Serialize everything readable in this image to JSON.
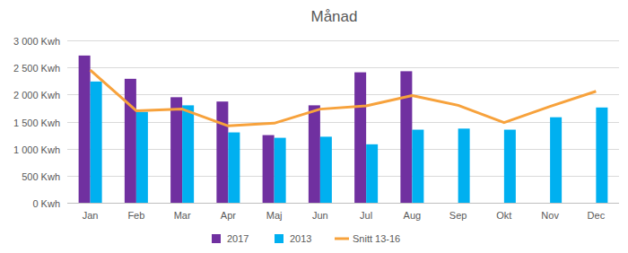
{
  "chart_data": {
    "type": "bar",
    "title": "Månad",
    "categories": [
      "Jan",
      "Feb",
      "Mar",
      "Apr",
      "Maj",
      "Jun",
      "Jul",
      "Aug",
      "Sep",
      "Okt",
      "Nov",
      "Dec"
    ],
    "series": [
      {
        "name": "2017",
        "type": "bar",
        "color": "#7030a0",
        "values": [
          2720,
          2290,
          1950,
          1870,
          1250,
          1800,
          2410,
          2430,
          null,
          null,
          null,
          null
        ]
      },
      {
        "name": "2013",
        "type": "bar",
        "color": "#00b0f0",
        "values": [
          2240,
          1680,
          1800,
          1300,
          1200,
          1220,
          1080,
          1350,
          1370,
          1350,
          1580,
          1760
        ]
      },
      {
        "name": "Snitt 13-16",
        "type": "line",
        "color": "#f7a23c",
        "values": [
          2450,
          1700,
          1730,
          1420,
          1470,
          1730,
          1790,
          1980,
          1800,
          1480,
          1780,
          2060
        ]
      }
    ],
    "ylim": [
      0,
      3000
    ],
    "yticks": [
      {
        "value": 0,
        "label": "0 Kwh"
      },
      {
        "value": 500,
        "label": "500 Kwh"
      },
      {
        "value": 1000,
        "label": "1 000 Kwh"
      },
      {
        "value": 1500,
        "label": "1 500 Kwh"
      },
      {
        "value": 2000,
        "label": "2 000 Kwh"
      },
      {
        "value": 2500,
        "label": "2 500 Kwh"
      },
      {
        "value": 3000,
        "label": "3 000 Kwh"
      }
    ],
    "grid": true,
    "legend": "bottom"
  }
}
